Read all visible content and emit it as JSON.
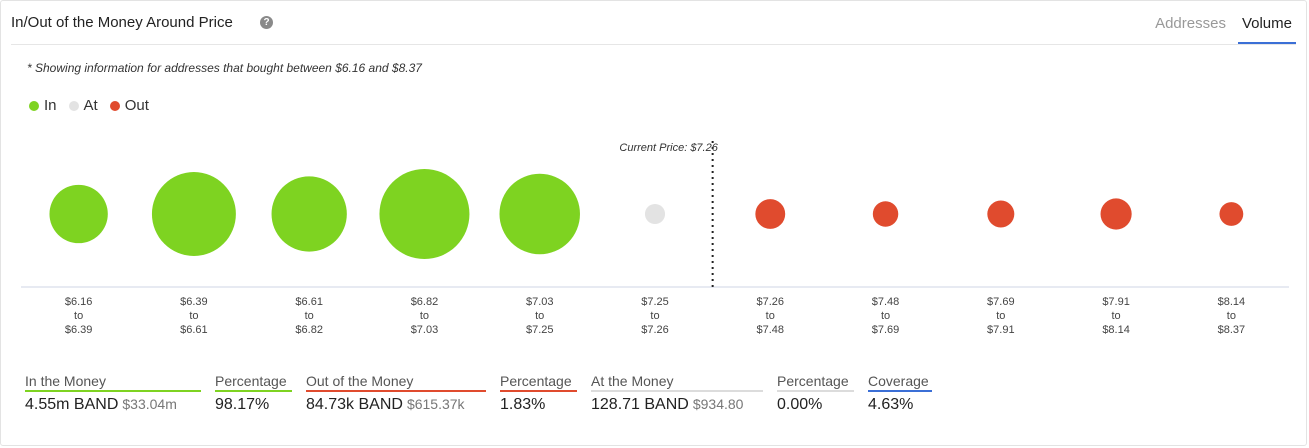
{
  "header": {
    "title": "In/Out of the Money Around Price",
    "tabs": [
      {
        "label": "Addresses",
        "active": false
      },
      {
        "label": "Volume",
        "active": true
      }
    ]
  },
  "note": "* Showing information for addresses that bought between $6.16 and $8.37",
  "legend": [
    {
      "label": "In",
      "color": "#7ed321"
    },
    {
      "label": "At",
      "color": "#e3e3e3"
    },
    {
      "label": "Out",
      "color": "#e04b2e"
    }
  ],
  "current_price_label": "Current Price: $7.26",
  "chart_data": {
    "type": "scatter",
    "title": "",
    "categories": [
      {
        "from": "$6.16",
        "to": "$6.39",
        "status": "in",
        "relative_volume": 0.42
      },
      {
        "from": "$6.39",
        "to": "$6.61",
        "status": "in",
        "relative_volume": 0.87
      },
      {
        "from": "$6.61",
        "to": "$6.82",
        "status": "in",
        "relative_volume": 0.7
      },
      {
        "from": "$6.82",
        "to": "$7.03",
        "status": "in",
        "relative_volume": 1.0
      },
      {
        "from": "$7.03",
        "to": "$7.25",
        "status": "in",
        "relative_volume": 0.8
      },
      {
        "from": "$7.25",
        "to": "$7.26",
        "status": "at",
        "relative_volume": 0.05
      },
      {
        "from": "$7.26",
        "to": "$7.48",
        "status": "out",
        "relative_volume": 0.11
      },
      {
        "from": "$7.48",
        "to": "$7.69",
        "status": "out",
        "relative_volume": 0.08
      },
      {
        "from": "$7.69",
        "to": "$7.91",
        "status": "out",
        "relative_volume": 0.09
      },
      {
        "from": "$7.91",
        "to": "$8.14",
        "status": "out",
        "relative_volume": 0.12
      },
      {
        "from": "$8.14",
        "to": "$8.37",
        "status": "out",
        "relative_volume": 0.07
      }
    ],
    "range_connector": "to",
    "current_price_after_index": 5,
    "grid": false
  },
  "stats": [
    {
      "label": "In the Money",
      "value": "4.55m BAND",
      "sub": "$33.04m",
      "color": "#7ed321"
    },
    {
      "label": "Percentage",
      "value": "98.17%",
      "sub": "",
      "color": "#7ed321"
    },
    {
      "label": "Out of the Money",
      "value": "84.73k BAND",
      "sub": "$615.37k",
      "color": "#e04b2e"
    },
    {
      "label": "Percentage",
      "value": "1.83%",
      "sub": "",
      "color": "#e04b2e"
    },
    {
      "label": "At the Money",
      "value": "128.71 BAND",
      "sub": "$934.80",
      "color": "#dcdcdc"
    },
    {
      "label": "Percentage",
      "value": "0.00%",
      "sub": "",
      "color": "#dcdcdc"
    },
    {
      "label": "Coverage",
      "value": "4.63%",
      "sub": "",
      "color": "#3b6fd6"
    }
  ]
}
